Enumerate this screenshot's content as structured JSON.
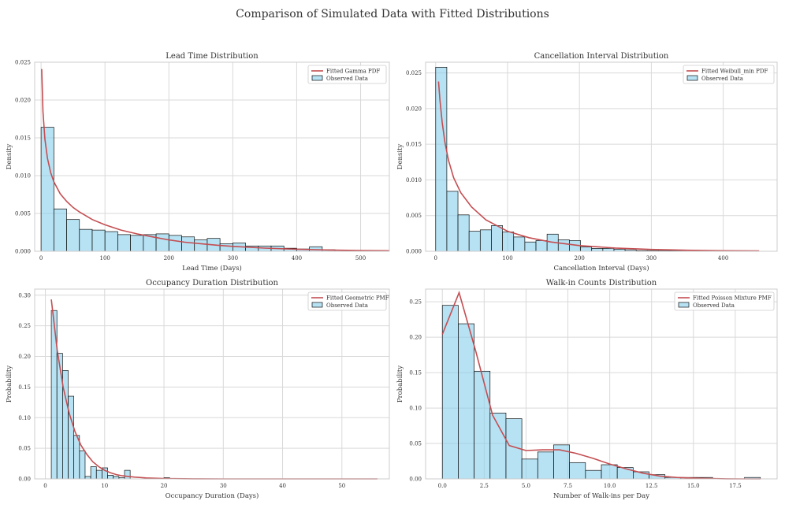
{
  "title": "Comparison of Simulated Data with Fitted Distributions",
  "colors": {
    "bar": "#87ceeb",
    "bar_edge": "#111111",
    "fit": "#c44e52"
  },
  "chart_data": [
    {
      "id": "lead",
      "type": "bar",
      "title": "Lead Time Distribution",
      "xlabel": "Lead Time (Days)",
      "ylabel": "Density",
      "xlim": [
        -10,
        545
      ],
      "ylim": [
        0,
        0.025
      ],
      "xticks": [
        0,
        100,
        200,
        300,
        400,
        500
      ],
      "yticks": [
        0.0,
        0.005,
        0.01,
        0.015,
        0.02,
        0.025
      ],
      "ytick_labels": [
        "0.000",
        "0.005",
        "0.010",
        "0.015",
        "0.020",
        "0.025"
      ],
      "xtick_labels": [
        "0",
        "100",
        "200",
        "300",
        "400",
        "500"
      ],
      "bin_start": 0,
      "bin_width": 20,
      "hist": [
        0.0164,
        0.0056,
        0.0042,
        0.0029,
        0.0028,
        0.0026,
        0.0022,
        0.0021,
        0.0022,
        0.0023,
        0.0021,
        0.0019,
        0.0015,
        0.0017,
        0.001,
        0.0011,
        0.0007,
        0.0007,
        0.0007,
        0.0004,
        0.0003,
        0.0006,
        0.0002
      ],
      "fit_x": [
        1,
        3,
        6,
        10,
        15,
        20,
        30,
        40,
        50,
        60,
        80,
        100,
        125,
        150,
        175,
        200,
        225,
        250,
        275,
        300,
        350,
        400,
        450,
        500,
        545
      ],
      "fit_y": [
        0.0241,
        0.0185,
        0.0148,
        0.0123,
        0.0104,
        0.0092,
        0.0076,
        0.0066,
        0.0058,
        0.0052,
        0.0042,
        0.0035,
        0.0028,
        0.0023,
        0.0019,
        0.0015,
        0.0012,
        0.001,
        0.0008,
        0.00065,
        0.00042,
        0.00027,
        0.00017,
        0.0001,
        7e-05
      ],
      "legend": [
        "Fitted Gamma PDF",
        "Observed Data"
      ]
    },
    {
      "id": "cancel",
      "type": "bar",
      "title": "Cancellation Interval Distribution",
      "xlabel": "Cancellation Interval (Days)",
      "ylabel": "Density",
      "xlim": [
        -14,
        475
      ],
      "ylim": [
        0,
        0.0265
      ],
      "xticks": [
        0,
        100,
        200,
        300,
        400
      ],
      "yticks": [
        0.0,
        0.005,
        0.01,
        0.015,
        0.02,
        0.025
      ],
      "ytick_labels": [
        "0.000",
        "0.005",
        "0.010",
        "0.015",
        "0.020",
        "0.025"
      ],
      "xtick_labels": [
        "0",
        "100",
        "200",
        "300",
        "400"
      ],
      "bin_start": 0,
      "bin_width": 15.5,
      "hist": [
        0.0258,
        0.0084,
        0.0051,
        0.0028,
        0.003,
        0.0036,
        0.0027,
        0.002,
        0.0013,
        0.0015,
        0.0024,
        0.0016,
        0.0015,
        0.0006,
        0.0004,
        0.0004,
        0.0003,
        0.0002,
        0.0001,
        0.0001,
        0.0001,
        0.0001,
        0.0001,
        0.0,
        0.0,
        0.0,
        0.0,
        0.0,
        0.0
      ],
      "fit_x": [
        4,
        6,
        9,
        13,
        18,
        25,
        35,
        50,
        70,
        100,
        130,
        160,
        200,
        250,
        300,
        350,
        400,
        450
      ],
      "fit_y": [
        0.0238,
        0.0212,
        0.0181,
        0.0152,
        0.0127,
        0.0103,
        0.0082,
        0.0062,
        0.0044,
        0.0028,
        0.0019,
        0.0013,
        0.0008,
        0.00045,
        0.00025,
        0.00014,
        8e-05,
        5e-05
      ],
      "legend": [
        "Fitted Weibull_min PDF",
        "Observed Data"
      ]
    },
    {
      "id": "occupancy",
      "type": "bar",
      "title": "Occupancy Duration Distribution",
      "xlabel": "Occupancy Duration (Days)",
      "ylabel": "Probability",
      "xlim": [
        -1.8,
        58
      ],
      "ylim": [
        0,
        0.31
      ],
      "xticks": [
        0,
        10,
        20,
        30,
        40,
        50
      ],
      "yticks": [
        0.0,
        0.05,
        0.1,
        0.15,
        0.2,
        0.25,
        0.3
      ],
      "ytick_labels": [
        "0.00",
        "0.05",
        "0.10",
        "0.15",
        "0.20",
        "0.25",
        "0.30"
      ],
      "xtick_labels": [
        "0",
        "10",
        "20",
        "30",
        "40",
        "50"
      ],
      "bin_start": 1,
      "bin_width": 0.95,
      "hist": [
        0.275,
        0.205,
        0.177,
        0.135,
        0.071,
        0.046,
        0.004,
        0.02,
        0.014,
        0.018,
        0.006,
        0.004,
        0.002,
        0.014,
        0.0,
        0.0,
        0.0,
        0.0,
        0.0,
        0.0,
        0.002
      ],
      "fit_x": [
        1,
        2,
        3,
        4,
        5,
        6,
        7,
        8,
        9,
        10,
        11,
        12,
        13,
        14,
        15,
        17,
        20,
        25,
        30,
        40,
        56
      ],
      "fit_y": [
        0.293,
        0.21,
        0.15,
        0.108,
        0.077,
        0.055,
        0.04,
        0.028,
        0.02,
        0.014,
        0.01,
        0.007,
        0.005,
        0.004,
        0.003,
        0.0015,
        0.0005,
        0.0001,
        0.0,
        0.0,
        0.0
      ],
      "legend": [
        "Fitted Geometric PMF",
        "Observed Data"
      ]
    },
    {
      "id": "walkin",
      "type": "bar",
      "title": "Walk-in Counts Distribution",
      "xlabel": "Number of Walk-ins per Day",
      "ylabel": "Probability",
      "xlim": [
        -1.0,
        20.0
      ],
      "ylim": [
        0,
        0.268
      ],
      "xticks": [
        0.0,
        2.5,
        5.0,
        7.5,
        10.0,
        12.5,
        15.0,
        17.5
      ],
      "yticks": [
        0.0,
        0.05,
        0.1,
        0.15,
        0.2,
        0.25
      ],
      "ytick_labels": [
        "0.00",
        "0.05",
        "0.10",
        "0.15",
        "0.20",
        "0.25"
      ],
      "xtick_labels": [
        "0.0",
        "2.5",
        "5.0",
        "7.5",
        "10.0",
        "12.5",
        "15.0",
        "17.5"
      ],
      "bin_start": 0,
      "bin_width": 0.95,
      "hist": [
        0.245,
        0.219,
        0.152,
        0.093,
        0.085,
        0.028,
        0.038,
        0.048,
        0.023,
        0.012,
        0.02,
        0.016,
        0.01,
        0.006,
        0.002,
        0.002,
        0.002,
        0.0,
        0.0,
        0.002
      ],
      "fit_x": [
        0,
        1,
        2,
        3,
        4,
        5,
        6,
        7,
        8,
        9,
        10,
        11,
        12,
        13,
        14,
        15,
        16,
        17,
        18,
        19
      ],
      "fit_y": [
        0.204,
        0.263,
        0.18,
        0.09,
        0.047,
        0.04,
        0.041,
        0.041,
        0.036,
        0.029,
        0.021,
        0.014,
        0.008,
        0.004,
        0.002,
        0.001,
        0.0004,
        0.0001,
        0.0,
        0.0
      ],
      "legend": [
        "Fitted Poisson Mixture PMF",
        "Observed Data"
      ]
    }
  ]
}
